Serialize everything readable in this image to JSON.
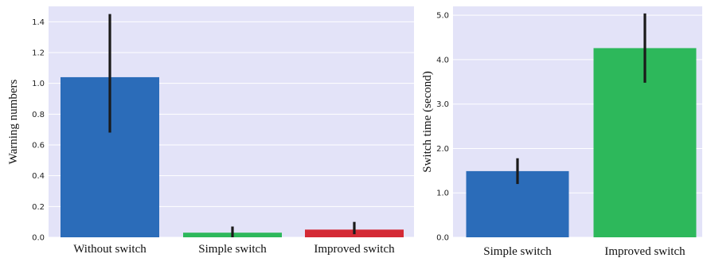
{
  "chart_data": [
    {
      "type": "bar",
      "categories": [
        "Without switch",
        "Simple switch",
        "Improved switch"
      ],
      "values": [
        1.04,
        0.03,
        0.05
      ],
      "error_low": [
        0.68,
        0.0,
        0.02
      ],
      "error_high": [
        1.45,
        0.07,
        0.1
      ],
      "colors": [
        "#2b6cb9",
        "#2db85b",
        "#d42a35"
      ],
      "ylabel": "Warning numbers",
      "xlabel": "",
      "ylim": [
        0,
        1.5
      ],
      "yticks": [
        "0.0",
        "0.2",
        "0.4",
        "0.6",
        "0.8",
        "1.0",
        "1.2",
        "1.4"
      ],
      "grid": true,
      "background": "#e3e3f8"
    },
    {
      "type": "bar",
      "categories": [
        "Simple switch",
        "Improved switch"
      ],
      "values": [
        1.49,
        4.26
      ],
      "error_low": [
        1.2,
        3.48
      ],
      "error_high": [
        1.78,
        5.04
      ],
      "colors": [
        "#2b6cb9",
        "#2db85b"
      ],
      "ylabel": "Switch time (second)",
      "xlabel": "",
      "ylim": [
        0,
        5.2
      ],
      "yticks": [
        "0.0",
        "1.0",
        "2.0",
        "3.0",
        "4.0",
        "5.0"
      ],
      "grid": true,
      "background": "#e3e3f8"
    }
  ]
}
